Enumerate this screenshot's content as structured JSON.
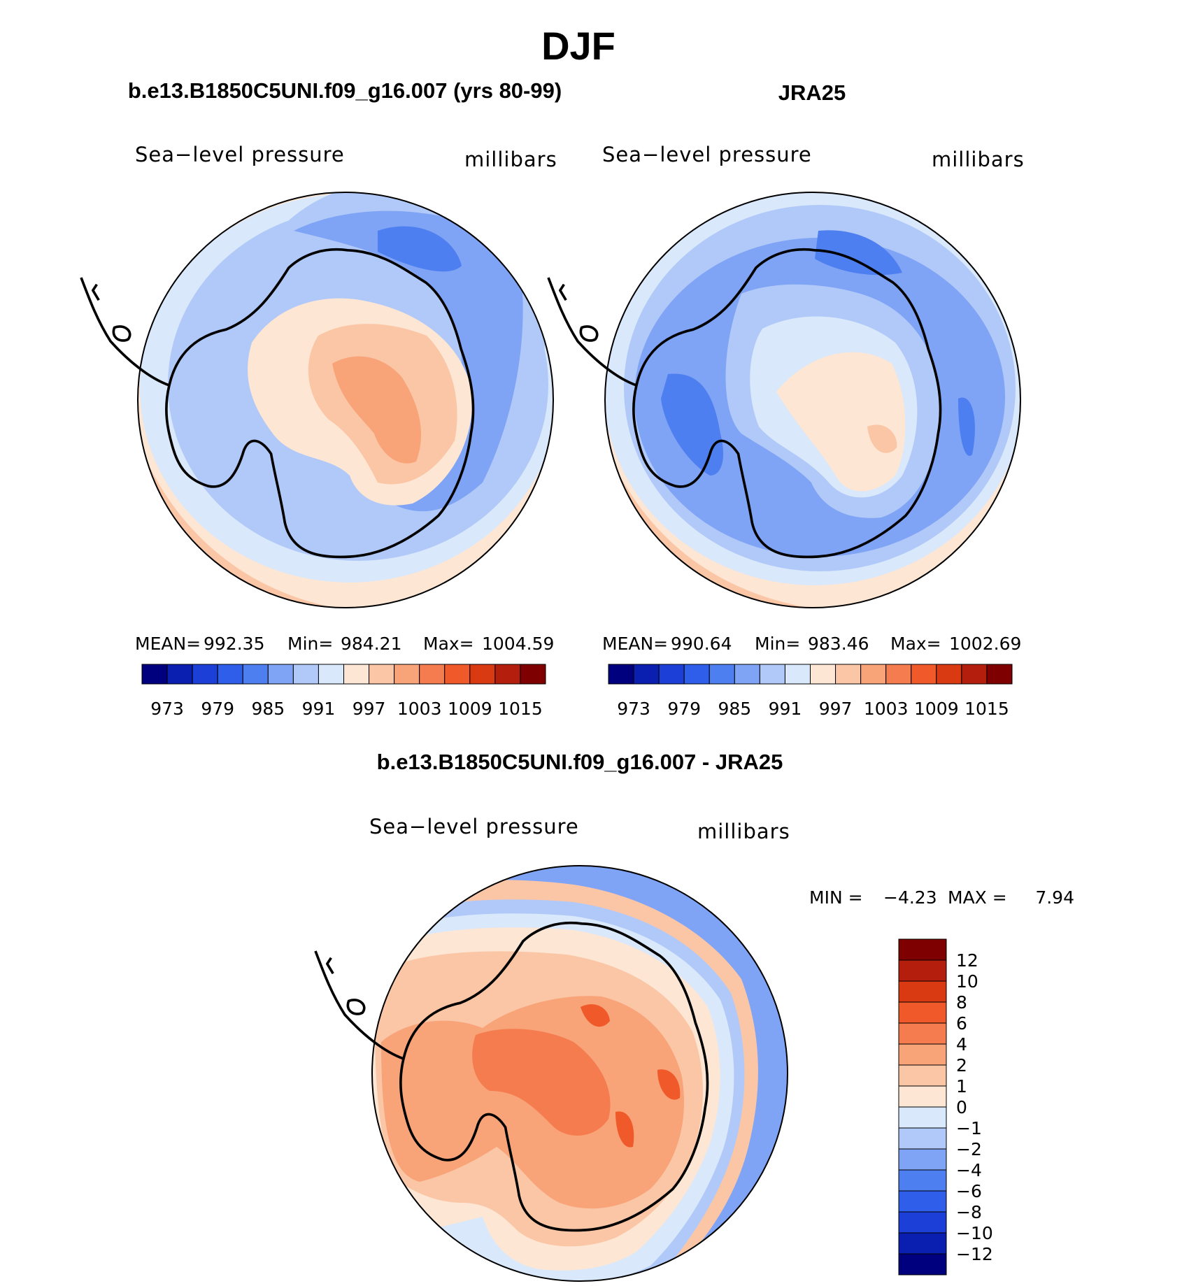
{
  "figure": {
    "season": "DJF",
    "model_title": "b.e13.B1850C5UNI.f09_g16.007 (yrs 80-99)",
    "obs_title": "JRA25",
    "diff_title": "b.e13.B1850C5UNI.f09_g16.007 - JRA25"
  },
  "panels": [
    {
      "variable": "Sea−level pressure",
      "units": "millibars",
      "stats": {
        "mean_label": "MEAN=",
        "mean_value": "992.35",
        "min_label": "Min=",
        "min_value": "984.21",
        "max_label": "Max=",
        "max_value": "1004.59"
      }
    },
    {
      "variable": "Sea−level pressure",
      "units": "millibars",
      "stats": {
        "mean_label": "MEAN=",
        "mean_value": "990.64",
        "min_label": "Min=",
        "min_value": "983.46",
        "max_label": "Max=",
        "max_value": "1002.69"
      }
    },
    {
      "variable": "Sea−level pressure",
      "units": "millibars",
      "stats": {
        "min_label": "MIN =",
        "min_value": "−4.23",
        "max_label": "MAX =",
        "max_value": "7.94"
      }
    }
  ],
  "colorbars": {
    "abs_colors": [
      "#00007f",
      "#0a1fb0",
      "#1c3fd8",
      "#2f5fea",
      "#4e7ff0",
      "#7fa3f5",
      "#b1c9f8",
      "#d9e8fb",
      "#fde6d3",
      "#fbc6a6",
      "#f8a378",
      "#f57c4f",
      "#f05a2a",
      "#d93a12",
      "#b31f0c",
      "#7f0000"
    ],
    "abs_ticks": [
      "973",
      "979",
      "985",
      "991",
      "997",
      "1003",
      "1009",
      "1015"
    ],
    "diff_colors": [
      "#7f0000",
      "#b31f0c",
      "#d93a12",
      "#f05a2a",
      "#f57c4f",
      "#f8a378",
      "#fbc6a6",
      "#fde6d3",
      "#d9e8fb",
      "#b1c9f8",
      "#7fa3f5",
      "#4e7ff0",
      "#2f5fea",
      "#1c3fd8",
      "#0a1fb0",
      "#00007f"
    ],
    "diff_ticks": [
      "12",
      "10",
      "8",
      "6",
      "4",
      "2",
      "1",
      "0",
      "−1",
      "−2",
      "−4",
      "−6",
      "−8",
      "−10",
      "−12"
    ]
  }
}
